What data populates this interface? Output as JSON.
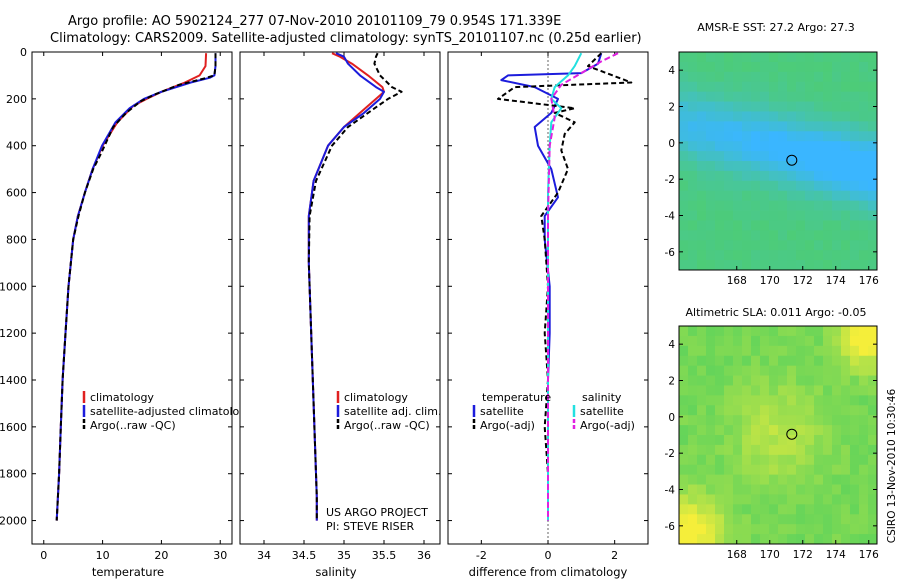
{
  "header": {
    "line1": "Argo profile: AO 5902124_277 07-Nov-2010 20101109_79 0.954S 171.339E",
    "line2": "Climatology: CARS2009. Satellite-adjusted climatology: synTS_20101107.nc (0.25d earlier)"
  },
  "colors": {
    "climatology": "#e02020",
    "satellite": "#1c1cdc",
    "argo": "#000000",
    "satellite_salinity": "#22e0e0",
    "argo_salinity": "#e020e0",
    "map_sst_deep": "#3ab6ff",
    "map_sst_warm": "#4dcc77",
    "map_sla_base": "#63d45a",
    "map_sla_high": "#f5ee3a"
  },
  "chart_data": [
    {
      "type": "line",
      "panel": "temperature",
      "xlabel": "temperature",
      "ylabel": "",
      "xlim": [
        -2,
        32
      ],
      "ylim": [
        2100,
        0
      ],
      "xticks": [
        "0",
        "10",
        "20",
        "30"
      ],
      "yticks": [
        "0",
        "200",
        "400",
        "600",
        "800",
        "1000",
        "1200",
        "1400",
        "1600",
        "1800",
        "2000"
      ],
      "legend": [
        "climatology",
        "satellite-adjusted climatology",
        "Argo(..raw -QC)"
      ],
      "series": [
        {
          "name": "climatology",
          "color": "climatology",
          "dash": "none",
          "x": [
            27.6,
            27.5,
            26.5,
            24,
            20,
            17.5,
            15.2,
            12.5,
            10,
            8.3,
            7,
            5.8,
            5,
            4.2,
            3.7,
            3.2,
            2.9,
            2.6,
            2.4,
            2.2
          ],
          "y": [
            5,
            60,
            100,
            130,
            170,
            200,
            230,
            300,
            400,
            500,
            600,
            700,
            800,
            1000,
            1200,
            1400,
            1600,
            1800,
            1900,
            2000
          ]
        },
        {
          "name": "satellite-adjusted climatology",
          "color": "satellite",
          "dash": "none",
          "x": [
            29.2,
            29.2,
            29.0,
            28.2,
            25,
            20,
            17,
            14.6,
            12.2,
            9.9,
            8.3,
            7,
            5.8,
            5,
            4.2,
            3.7,
            3.2,
            2.9,
            2.6,
            2.4,
            2.2
          ],
          "y": [
            5,
            60,
            100,
            110,
            130,
            170,
            200,
            240,
            300,
            400,
            500,
            600,
            700,
            800,
            1000,
            1200,
            1400,
            1600,
            1800,
            1900,
            2000
          ]
        },
        {
          "name": "Argo(..raw -QC)",
          "color": "argo",
          "dash": "5,3",
          "x": [
            29.2,
            29.2,
            29.0,
            27,
            23,
            19,
            16.5,
            14,
            11.8,
            9.8,
            8.4,
            7,
            5.9,
            5,
            4.2,
            3.7,
            3.2,
            2.9,
            2.6,
            2.4,
            2.2
          ],
          "y": [
            5,
            60,
            100,
            115,
            140,
            180,
            210,
            260,
            320,
            430,
            500,
            600,
            700,
            800,
            1000,
            1200,
            1400,
            1600,
            1800,
            1900,
            2000
          ]
        }
      ]
    },
    {
      "type": "line",
      "panel": "salinity",
      "xlabel": "salinity",
      "ylabel": "",
      "xlim": [
        33.7,
        36.2
      ],
      "ylim": [
        2100,
        0
      ],
      "xticks": [
        "34",
        "34.5",
        "35",
        "35.5",
        "36"
      ],
      "legend": [
        "climatology",
        "satellite adj. clim.",
        "Argo(..raw -QC)"
      ],
      "annotations": [
        "US ARGO PROJECT",
        "PI: STEVE RISER"
      ],
      "series": [
        {
          "name": "climatology",
          "color": "climatology",
          "dash": "none",
          "x": [
            34.85,
            34.95,
            35.1,
            35.3,
            35.48,
            35.5,
            35.4,
            35.2,
            35.0,
            34.8,
            34.62,
            34.56,
            34.56,
            34.58,
            34.6,
            34.62,
            34.64,
            34.66,
            34.66
          ],
          "y": [
            5,
            20,
            50,
            100,
            150,
            170,
            200,
            260,
            320,
            400,
            550,
            700,
            900,
            1100,
            1300,
            1500,
            1700,
            1900,
            2000
          ]
        },
        {
          "name": "satellite adj. clim.",
          "color": "satellite",
          "dash": "none",
          "x": [
            34.9,
            35.0,
            35.05,
            35.2,
            35.4,
            35.5,
            35.45,
            35.25,
            35.0,
            34.8,
            34.62,
            34.56,
            34.56,
            34.58,
            34.6,
            34.62,
            34.64,
            34.66,
            34.66
          ],
          "y": [
            5,
            20,
            50,
            100,
            150,
            170,
            200,
            260,
            320,
            400,
            550,
            700,
            900,
            1100,
            1300,
            1500,
            1700,
            1900,
            2000
          ]
        },
        {
          "name": "Argo(..raw -QC)",
          "color": "argo",
          "dash": "5,3",
          "x": [
            35.42,
            35.4,
            35.38,
            35.45,
            35.6,
            35.72,
            35.55,
            35.3,
            35.05,
            34.85,
            34.65,
            34.57,
            34.56,
            34.58,
            34.6,
            34.62,
            34.64,
            34.66,
            34.66
          ],
          "y": [
            5,
            20,
            50,
            100,
            150,
            170,
            200,
            260,
            320,
            400,
            550,
            700,
            900,
            1100,
            1300,
            1500,
            1700,
            1900,
            2000
          ]
        }
      ]
    },
    {
      "type": "line",
      "panel": "difference",
      "xlabel": "difference from climatology",
      "ylabel": "",
      "xlim": [
        -3,
        3
      ],
      "ylim": [
        2100,
        0
      ],
      "xticks": [
        "-2",
        "0",
        "2"
      ],
      "legend_groups": [
        {
          "title": "temperature",
          "items": [
            "satellite",
            "Argo(-adj)"
          ]
        },
        {
          "title": "salinity",
          "items": [
            "satellite",
            "Argo(-adj)"
          ]
        }
      ],
      "series": [
        {
          "name": "temperature satellite",
          "color": "satellite",
          "dash": "none",
          "x": [
            1.6,
            1.5,
            1.0,
            -1.2,
            -1.4,
            -0.4,
            0.3,
            0.1,
            -0.4,
            -0.3,
            0.1,
            0.3,
            -0.1,
            -0.1,
            0.05,
            0.05,
            0.0,
            0.0,
            0.0,
            0.0
          ],
          "y": [
            5,
            50,
            90,
            100,
            120,
            150,
            200,
            260,
            320,
            400,
            500,
            620,
            700,
            800,
            1000,
            1200,
            1400,
            1600,
            1800,
            2000
          ]
        },
        {
          "name": "temperature Argo(-adj)",
          "color": "argo",
          "dash": "5,3",
          "x": [
            1.6,
            1.2,
            2.5,
            -1.0,
            -1.5,
            0.8,
            0.2,
            0.8,
            0.5,
            0.4,
            0.6,
            0.3,
            -0.2,
            -0.1,
            0.0,
            -0.1,
            0.0,
            -0.1,
            0.0,
            0.0
          ],
          "y": [
            5,
            60,
            130,
            150,
            200,
            240,
            260,
            300,
            350,
            420,
            500,
            600,
            700,
            800,
            1000,
            1200,
            1400,
            1600,
            1800,
            2000
          ]
        },
        {
          "name": "salinity satellite",
          "color": "satellite_salinity",
          "dash": "none",
          "x": [
            1.0,
            0.8,
            0.6,
            0.2,
            0.1,
            0.4,
            0.1,
            0.05,
            0.0,
            0.0,
            0.0,
            0.0
          ],
          "y": [
            5,
            60,
            100,
            150,
            200,
            240,
            300,
            400,
            600,
            1000,
            1500,
            2000
          ]
        },
        {
          "name": "salinity Argo(-adj)",
          "color": "argo_salinity",
          "dash": "6,3",
          "x": [
            2.1,
            1.6,
            1.0,
            0.4,
            0.1,
            0.2,
            0.05,
            0.0,
            0.0,
            0.0
          ],
          "y": [
            5,
            40,
            90,
            140,
            200,
            280,
            400,
            700,
            1200,
            2000
          ]
        }
      ]
    }
  ],
  "maps": [
    {
      "title": "AMSR-E SST: 27.2 Argo: 27.3",
      "xticks": [
        "168",
        "170",
        "172",
        "174",
        "176"
      ],
      "yticks": [
        "4",
        "2",
        "0",
        "-2",
        "-4",
        "-6"
      ],
      "xlim": [
        164.5,
        176.5
      ],
      "ylim": [
        -7,
        5
      ],
      "marker": {
        "lon": 171.339,
        "lat": -0.954
      }
    },
    {
      "title": "Altimetric SLA: 0.011 Argo: -0.05",
      "xticks": [
        "168",
        "170",
        "172",
        "174",
        "176"
      ],
      "yticks": [
        "4",
        "2",
        "0",
        "-2",
        "-4",
        "-6"
      ],
      "xlim": [
        164.5,
        176.5
      ],
      "ylim": [
        -7,
        5
      ],
      "marker": {
        "lon": 171.339,
        "lat": -0.954
      }
    }
  ],
  "footer": {
    "stamp": "CSIRO 13-Nov-2010 10:30:46"
  }
}
